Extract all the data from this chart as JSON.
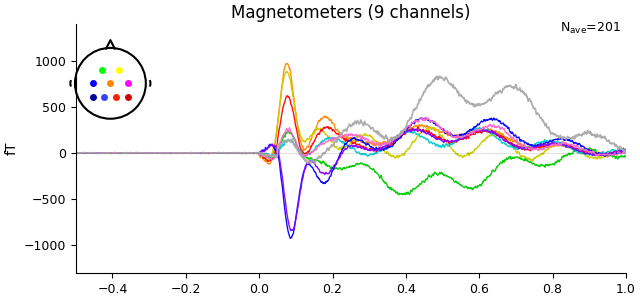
{
  "title": "Magnetometers (9 channels)",
  "nave_label": "N_ave=201",
  "ylabel": "fT",
  "xlim": [
    -0.5,
    1.0
  ],
  "ylim": [
    -1300,
    1400
  ],
  "yticks": [
    -1000,
    -500,
    0,
    500,
    1000
  ],
  "xticks": [
    -0.4,
    -0.2,
    0.0,
    0.2,
    0.4,
    0.6,
    0.8,
    1.0
  ],
  "line_colors": [
    "#ff8800",
    "#cccc00",
    "#ff0000",
    "#00cc00",
    "#00cccc",
    "#0000ff",
    "#8800ff",
    "#ff66cc",
    "#aaaaaa"
  ],
  "dot_colors_row1": [
    "#00ff00",
    "#ffff00"
  ],
  "dot_colors_row2": [
    "#0000ff",
    "#ff8800",
    "#ff00ff"
  ],
  "dot_colors_row3": [
    "#0000aa",
    "#3333ff",
    "#ff0000",
    "#cc0000"
  ],
  "background_color": "#ffffff"
}
